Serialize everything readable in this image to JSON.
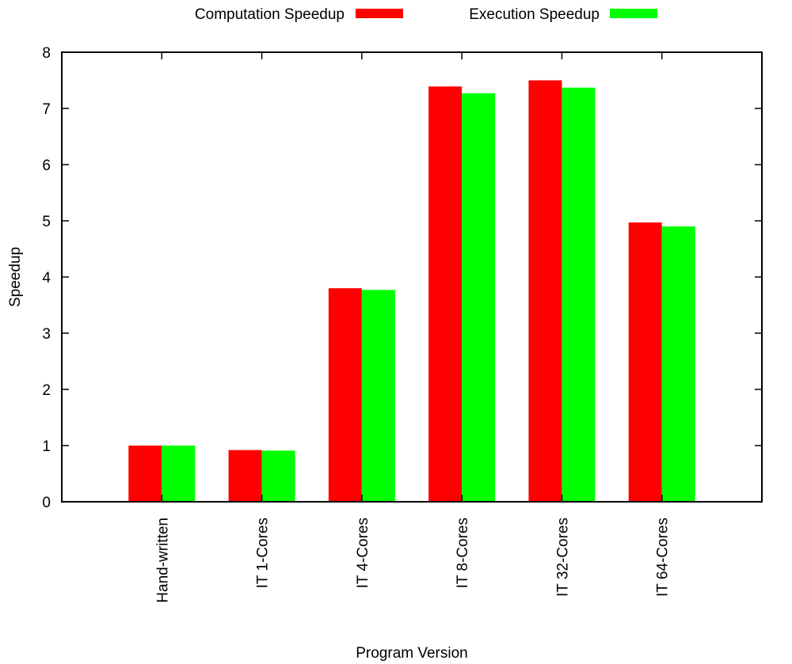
{
  "chart_data": {
    "type": "bar",
    "xlabel": "Program Version",
    "ylabel": "Speedup",
    "ylim": [
      0,
      8
    ],
    "yticks": [
      0,
      1,
      2,
      3,
      4,
      5,
      6,
      7,
      8
    ],
    "categories": [
      "Hand-written",
      "IT 1-Cores",
      "IT 4-Cores",
      "IT 8-Cores",
      "IT 32-Cores",
      "IT 64-Cores"
    ],
    "series": [
      {
        "name": "Computation Speedup",
        "color": "#ff0000",
        "values": [
          1.0,
          0.92,
          3.8,
          7.39,
          7.5,
          4.97
        ]
      },
      {
        "name": "Execution Speedup",
        "color": "#00ff00",
        "values": [
          1.0,
          0.91,
          3.77,
          7.27,
          7.37,
          4.9
        ]
      }
    ],
    "legend_position": "top",
    "grid": false
  }
}
